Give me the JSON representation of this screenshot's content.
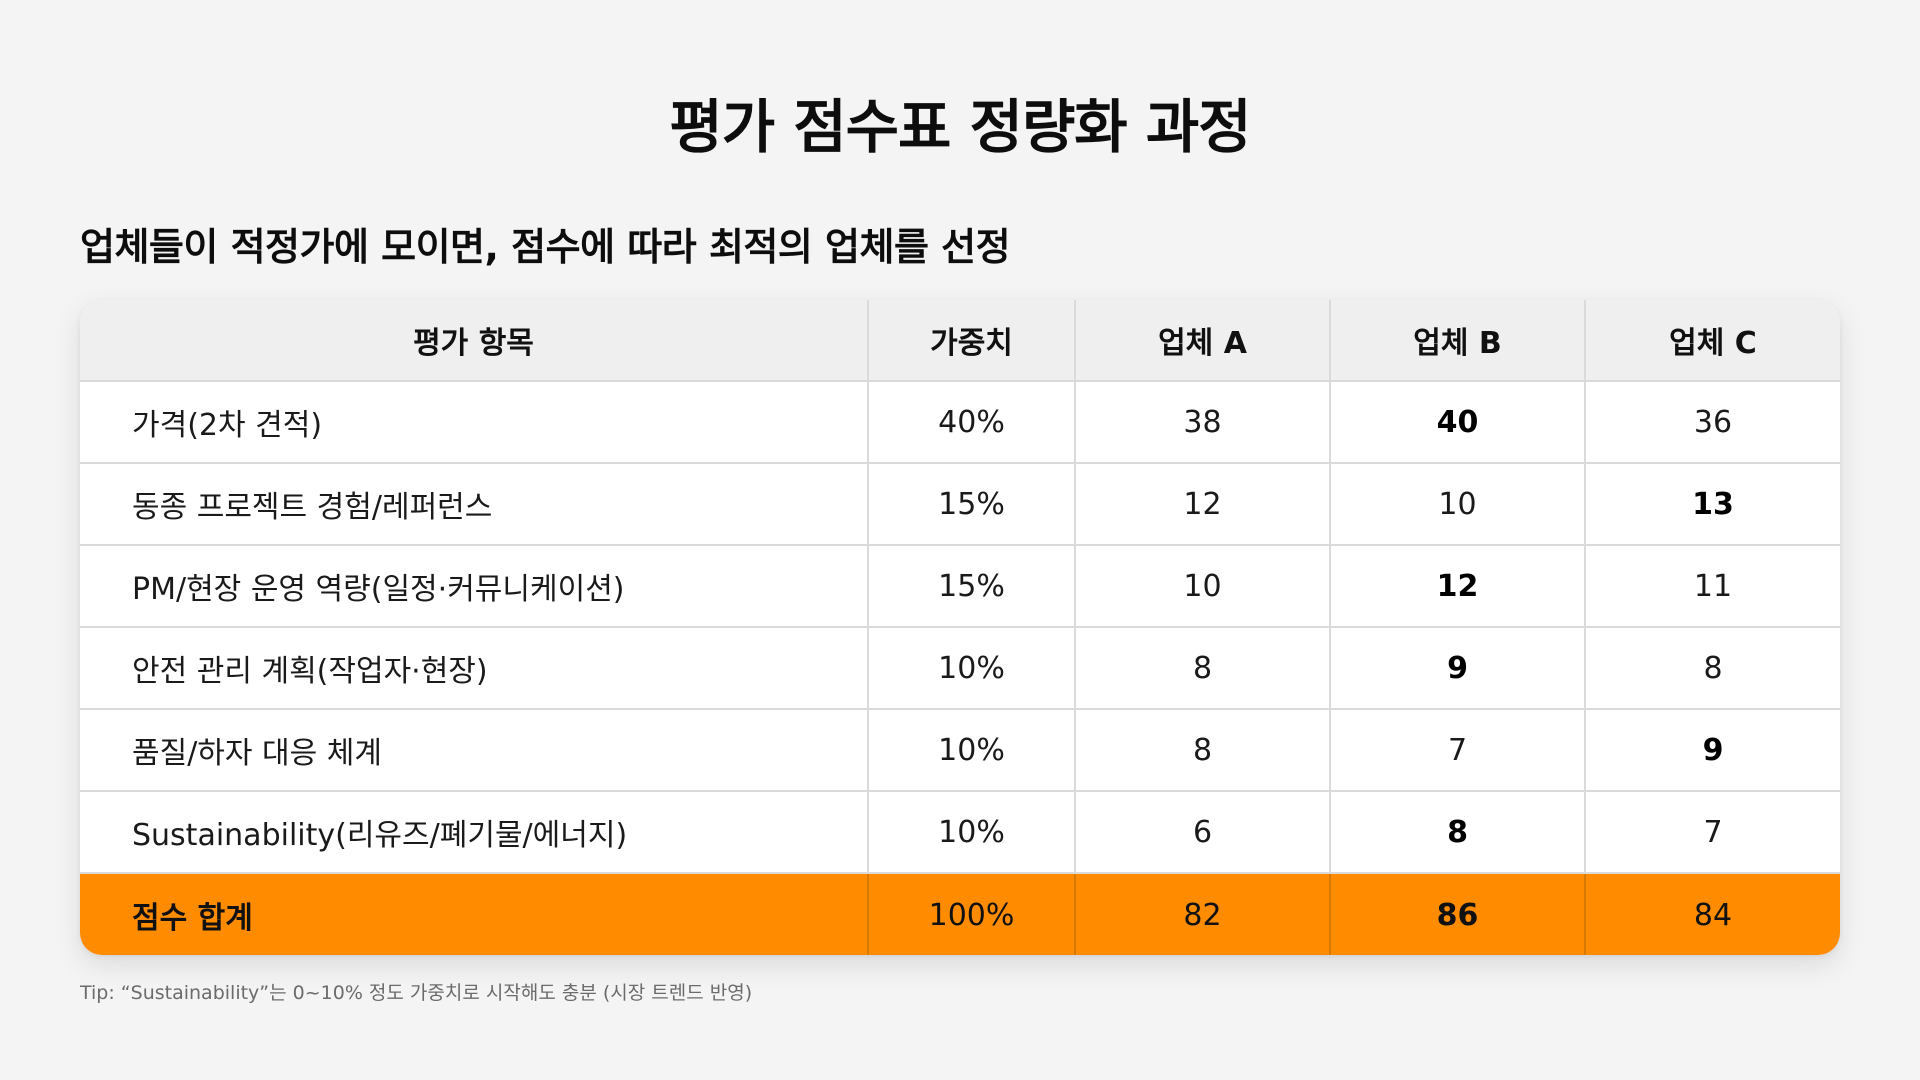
{
  "title": "평가 점수표 정량화 과정",
  "subtitle": "업체들이 적정가에 모이면, 점수에 따라 최적의 업체를 선정",
  "table": {
    "headers": [
      "평가 항목",
      "가중치",
      "업체 A",
      "업체 B",
      "업체 C"
    ],
    "rows": [
      {
        "item": "가격(2차 견적)",
        "weight": "40%",
        "a": "38",
        "b": "40",
        "c": "36",
        "best": "b"
      },
      {
        "item": "동종 프로젝트 경험/레퍼런스",
        "weight": "15%",
        "a": "12",
        "b": "10",
        "c": "13",
        "best": "c"
      },
      {
        "item": "PM/현장 운영 역량(일정·커뮤니케이션)",
        "weight": "15%",
        "a": "10",
        "b": "12",
        "c": "11",
        "best": "b"
      },
      {
        "item": "안전 관리 계획(작업자·현장)",
        "weight": "10%",
        "a": "8",
        "b": "9",
        "c": "8",
        "best": "b"
      },
      {
        "item": "품질/하자 대응 체계",
        "weight": "10%",
        "a": "8",
        "b": "7",
        "c": "9",
        "best": "c"
      },
      {
        "item": "Sustainability(리유즈/폐기물/에너지)",
        "weight": "10%",
        "a": "6",
        "b": "8",
        "c": "7",
        "best": "b"
      }
    ],
    "total": {
      "item": "점수 합계",
      "weight": "100%",
      "a": "82",
      "b": "86",
      "c": "84",
      "best": "b"
    }
  },
  "tip": "Tip: “Sustainability”는 0~10% 정도 가중치로 시작해도 충분 (시장 트렌드 반영)",
  "colors": {
    "background": "#f4f4f4",
    "header_bg": "#efefef",
    "total_bg": "#ff8c00",
    "grid": "#dadada"
  }
}
